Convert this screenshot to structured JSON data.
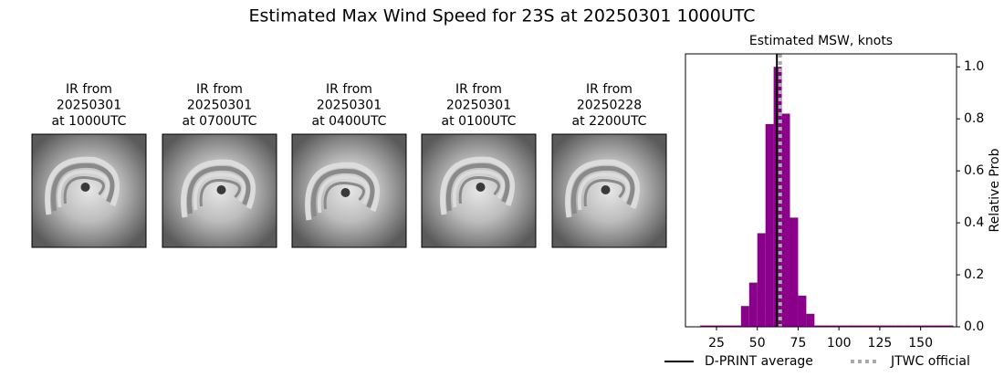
{
  "title": "Estimated Max Wind Speed for 23S at 20250301 1000UTC",
  "panels": [
    {
      "caption": [
        "IR from",
        "20250301",
        "at 1000UTC"
      ]
    },
    {
      "caption": [
        "IR from",
        "20250301",
        "at 0700UTC"
      ]
    },
    {
      "caption": [
        "IR from",
        "20250301",
        "at 0400UTC"
      ]
    },
    {
      "caption": [
        "IR from",
        "20250301",
        "at 0100UTC"
      ]
    },
    {
      "caption": [
        "IR from",
        "20250228",
        "at 2200UTC"
      ]
    }
  ],
  "chart_data": {
    "type": "histogram",
    "title": "Estimated MSW, knots",
    "y_label": "Relative Prob",
    "bins": [
      15,
      20,
      25,
      30,
      35,
      40,
      45,
      50,
      55,
      60,
      65,
      70,
      75,
      80,
      85,
      90,
      95,
      100,
      105,
      110,
      115,
      120,
      125,
      130,
      135,
      140,
      145,
      150,
      155,
      160,
      165,
      170
    ],
    "values": [
      0.005,
      0.005,
      0.005,
      0.005,
      0.005,
      0.08,
      0.17,
      0.36,
      0.78,
      1.0,
      0.82,
      0.42,
      0.12,
      0.05,
      0.005,
      0.005,
      0.005,
      0.005,
      0.005,
      0.005,
      0.005,
      0.005,
      0.005,
      0.005,
      0.005,
      0.005,
      0.005,
      0.005,
      0.005,
      0.005,
      0.005
    ],
    "color": "#8b008b",
    "reference_lines": [
      {
        "name": "D-PRINT average",
        "value": 62,
        "color": "#000000",
        "style": "solid"
      },
      {
        "name": "JTWC official",
        "value": 64,
        "color": "#aaaaaa",
        "style": "dotted"
      }
    ],
    "xlim": [
      6,
      172
    ],
    "xticks": [
      25,
      50,
      75,
      100,
      125,
      150
    ],
    "ylim": [
      0,
      1.05
    ],
    "yticks": [
      {
        "value": 0,
        "label": "0.0"
      },
      0.2,
      0.4,
      0.6,
      0.8,
      {
        "value": 1,
        "label": "1.0"
      }
    ]
  }
}
